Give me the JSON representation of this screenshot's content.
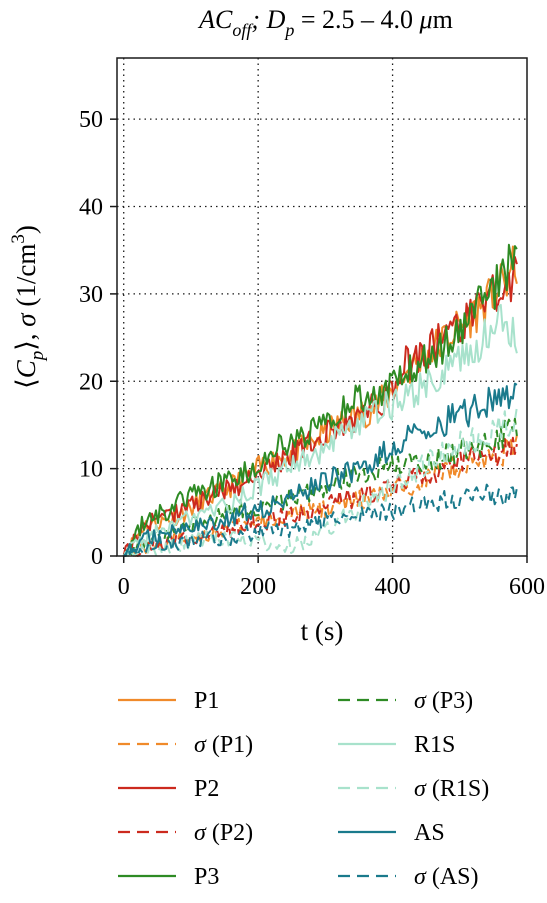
{
  "chart_data": {
    "type": "line",
    "title": {
      "parts": [
        {
          "t": "AC",
          "style": "italic",
          "shift": 0
        },
        {
          "t": "off",
          "style": "italic",
          "shift": 1
        },
        {
          "t": "; ",
          "style": "italic",
          "shift": 0
        },
        {
          "t": "D",
          "style": "italic",
          "shift": 0
        },
        {
          "t": "p",
          "style": "italic",
          "shift": 1
        },
        {
          "t": " = 2.5 – 4.0 ",
          "style": "normal",
          "shift": 0
        },
        {
          "t": "μ",
          "style": "italic",
          "shift": 0
        },
        {
          "t": "m",
          "style": "normal",
          "shift": 0
        }
      ]
    },
    "xlabel": "t (s)",
    "ylabel": {
      "parts": [
        {
          "t": "⟨",
          "style": "normal",
          "shift": 0
        },
        {
          "t": "C",
          "style": "italic",
          "shift": 0
        },
        {
          "t": "p",
          "style": "italic",
          "shift": 1
        },
        {
          "t": "⟩, ",
          "style": "normal",
          "shift": 0
        },
        {
          "t": "σ",
          "style": "italic",
          "shift": 0
        },
        {
          "t": " (1/cm",
          "style": "normal",
          "shift": 0
        },
        {
          "t": "3",
          "style": "normal",
          "shift": -1
        },
        {
          "t": ")",
          "style": "normal",
          "shift": 0
        }
      ]
    },
    "xlim": [
      -10,
      600
    ],
    "ylim": [
      0,
      57
    ],
    "xticks": [
      0,
      200,
      400,
      600
    ],
    "yticks": [
      0,
      10,
      20,
      30,
      40,
      50
    ],
    "grid": true,
    "grid_style": "dotted",
    "legend_position": "below plot, two columns",
    "x": [
      0,
      30,
      60,
      90,
      120,
      150,
      180,
      210,
      240,
      270,
      300,
      330,
      360,
      390,
      420,
      450,
      480,
      510,
      540,
      570,
      585
    ],
    "series": [
      {
        "name": "P1",
        "color": "#f08a2a",
        "dash": "solid",
        "values": [
          0,
          3.5,
          4,
          5,
          6.5,
          7.5,
          9,
          10.5,
          11.5,
          12.5,
          14,
          15.5,
          16.5,
          18,
          21,
          23,
          25,
          27,
          29,
          31.5,
          33.5
        ]
      },
      {
        "name": "σ (P1)",
        "color": "#f08a2a",
        "dash": "dashed",
        "values": [
          0,
          1,
          1.5,
          2,
          2.5,
          3,
          3.5,
          4,
          4.5,
          5,
          5.5,
          6,
          6.5,
          7,
          8,
          9,
          10,
          10.5,
          11,
          12,
          12.5
        ]
      },
      {
        "name": "P2",
        "color": "#cc2a1e",
        "dash": "solid",
        "values": [
          0,
          3.5,
          4.5,
          5.5,
          6.5,
          7.5,
          8.5,
          10,
          11,
          12.5,
          14,
          15,
          16.5,
          18,
          22,
          23.5,
          25,
          27,
          29,
          31,
          32
        ]
      },
      {
        "name": "σ (P2)",
        "color": "#cc2a1e",
        "dash": "dashed",
        "values": [
          0,
          1,
          1.5,
          2,
          2.5,
          3,
          3.5,
          4,
          4.5,
          5,
          6,
          6.5,
          7,
          7.5,
          8.5,
          9.5,
          10,
          11,
          11.5,
          12,
          12.5
        ]
      },
      {
        "name": "P3",
        "color": "#2e8b24",
        "dash": "solid",
        "values": [
          0,
          4,
          5,
          6.5,
          7.5,
          8.5,
          9.5,
          11,
          13,
          14,
          15.5,
          17,
          18.5,
          18.5,
          21,
          22.5,
          24.5,
          27,
          29.5,
          33,
          35.5
        ]
      },
      {
        "name": "σ (P3)",
        "color": "#2e8b24",
        "dash": "dashed",
        "values": [
          0,
          1.5,
          2.5,
          3.5,
          4,
          5,
          5.5,
          6,
          6.5,
          7,
          8,
          9,
          9.5,
          10,
          10.5,
          11,
          11.5,
          12.5,
          13,
          14,
          14.5
        ]
      },
      {
        "name": "R1S",
        "color": "#a8e2cc",
        "dash": "solid",
        "values": [
          0,
          2,
          3,
          4,
          5,
          6,
          7,
          8.5,
          10,
          11,
          12.5,
          14,
          15.5,
          17,
          18,
          19.5,
          21,
          23,
          25,
          27,
          25
        ]
      },
      {
        "name": "σ (R1S)",
        "color": "#a8e2cc",
        "dash": "dashed",
        "values": [
          0,
          0.5,
          1,
          1.5,
          2,
          2,
          2,
          1.5,
          1,
          1.5,
          3,
          4.5,
          6,
          7.5,
          9,
          10.5,
          12,
          13,
          14,
          15,
          15.5
        ]
      },
      {
        "name": "AS",
        "color": "#1a7a8c",
        "dash": "solid",
        "values": [
          0,
          2,
          2.5,
          3,
          3.5,
          4,
          5,
          5.5,
          6.5,
          7.5,
          8.5,
          9.5,
          10.5,
          12,
          13.5,
          14.5,
          15.5,
          16.5,
          17.5,
          18,
          18.5
        ]
      },
      {
        "name": "σ (AS)",
        "color": "#1a7a8c",
        "dash": "dashed",
        "values": [
          0,
          1,
          1.5,
          1.5,
          2,
          2,
          2.5,
          3,
          3,
          3.5,
          4,
          4.5,
          5,
          5,
          5.5,
          6,
          6.5,
          6.5,
          7,
          7,
          7.5
        ]
      }
    ]
  }
}
